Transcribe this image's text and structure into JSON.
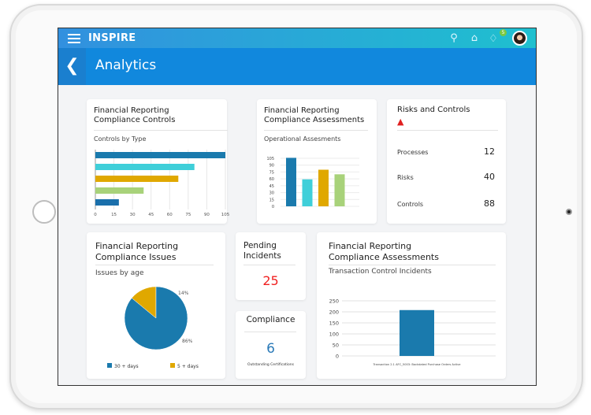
{
  "app": {
    "brand": "INSPIRE",
    "notification_count": "5",
    "page_title": "Analytics"
  },
  "icons": {
    "menu": "hamburger-icon",
    "search": "search-icon",
    "home": "home-icon",
    "bell": "bell-icon",
    "back": "chevron-left-icon",
    "warning": "warning-icon"
  },
  "cards": {
    "controls": {
      "title1": "Financial Reporting",
      "title2": "Compliance Controls",
      "subtitle": "Controls by Type"
    },
    "assess_ops": {
      "title1": "Financial Reporting",
      "title2": "Compliance Assessments",
      "subtitle": "Operational Assesments"
    },
    "risks": {
      "title": "Risks and Controls",
      "rows": [
        {
          "label": "Processes",
          "value": "12"
        },
        {
          "label": "Risks",
          "value": "40"
        },
        {
          "label": "Controls",
          "value": "88"
        }
      ]
    },
    "issues": {
      "title1": "Financial Reporting",
      "title2": "Compliance Issues",
      "subtitle": "Issues by age"
    },
    "pending": {
      "title1": "Pending",
      "title2": "Incidents",
      "value": "25"
    },
    "compliance": {
      "title": "Compliance",
      "value": "6",
      "caption": "Outstanding Certifications"
    },
    "assess_tx": {
      "title1": "Financial Reporting",
      "title2": "Compliance Assessments",
      "subtitle": "Transaction Control Incidents"
    }
  },
  "chart_data": [
    {
      "type": "bar",
      "orientation": "horizontal",
      "values": [
        105,
        80,
        67,
        39,
        19
      ],
      "colors": [
        "#1a7aad",
        "#3fcfd9",
        "#e0a800",
        "#a8d27a",
        "#1a6fab"
      ],
      "xticks": [
        "0",
        "15",
        "30",
        "45",
        "60",
        "75",
        "90",
        "105"
      ],
      "xlim": [
        0,
        105
      ],
      "grid": true
    },
    {
      "type": "bar",
      "values": [
        106,
        59,
        80,
        70
      ],
      "colors": [
        "#1a7aad",
        "#3fcfd9",
        "#e0a800",
        "#a8d27a"
      ],
      "yticks": [
        "0",
        "15",
        "30",
        "45",
        "60",
        "75",
        "90",
        "105"
      ],
      "ylim": [
        0,
        105
      ],
      "grid": true
    },
    {
      "type": "pie",
      "series": [
        {
          "name": "30 + days",
          "value": 86,
          "label": "86%",
          "color": "#1a7aad"
        },
        {
          "name": "5 + days",
          "value": 14,
          "label": "14%",
          "color": "#e0a800"
        }
      ],
      "legend": "bottom"
    },
    {
      "type": "bar",
      "categories": [
        "Transaction 2.1 AFC_5003: Backdated Purchase Orders Active"
      ],
      "values": [
        208
      ],
      "color": "#1a7aad",
      "yticks": [
        "0",
        "50",
        "100",
        "150",
        "200",
        "250"
      ],
      "ylim": [
        0,
        250
      ],
      "grid": true
    }
  ]
}
